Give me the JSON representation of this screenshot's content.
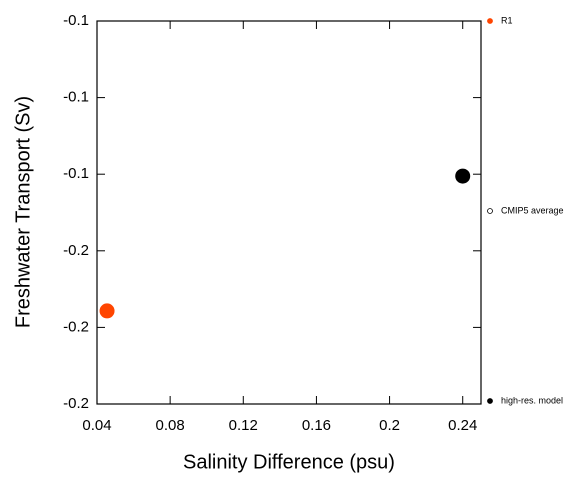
{
  "chart_data": {
    "type": "scatter",
    "xlabel": "Salinity Difference (psu)",
    "ylabel": "Freshwater Transport (Sv)",
    "xlim": [
      0.04,
      0.25
    ],
    "ylim": [
      -0.2,
      -0.1
    ],
    "xticks": [
      0.04,
      0.08,
      0.12,
      0.16,
      0.2,
      0.24
    ],
    "yticks": [
      {
        "value": -0.2,
        "label": "-0.2"
      },
      {
        "value": -0.18,
        "label": "-0.2"
      },
      {
        "value": -0.16,
        "label": "-0.2"
      },
      {
        "value": -0.14,
        "label": "-0.1"
      },
      {
        "value": -0.12,
        "label": "-0.1"
      },
      {
        "value": -0.1,
        "label": "-0.1"
      }
    ],
    "series": [
      {
        "name": "R1",
        "color": "#ff4500",
        "filled": true,
        "x": [
          0.0455
        ],
        "values": [
          -0.1757
        ]
      },
      {
        "name": "CMIP5 average",
        "color": "#000000",
        "filled": false,
        "x": [],
        "values": []
      },
      {
        "name": "high-res. model",
        "color": "#000000",
        "filled": true,
        "x": [
          0.24
        ],
        "values": [
          -0.1405
        ]
      }
    ]
  }
}
